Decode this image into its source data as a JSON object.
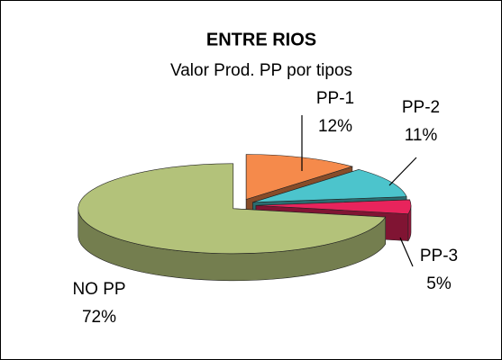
{
  "chart_data": {
    "type": "pie3d",
    "title": "ENTRE RIOS",
    "subtitle": "Valor Prod. PP por tipos",
    "categories": [
      "PP-1",
      "PP-2",
      "PP-3",
      "NO PP"
    ],
    "values": [
      12,
      11,
      5,
      72
    ],
    "value_labels": [
      "12%",
      "11%",
      "5%",
      "72%"
    ],
    "colors": [
      "#f58a4b",
      "#4cc4cc",
      "#e8245c",
      "#b3c27a"
    ]
  }
}
